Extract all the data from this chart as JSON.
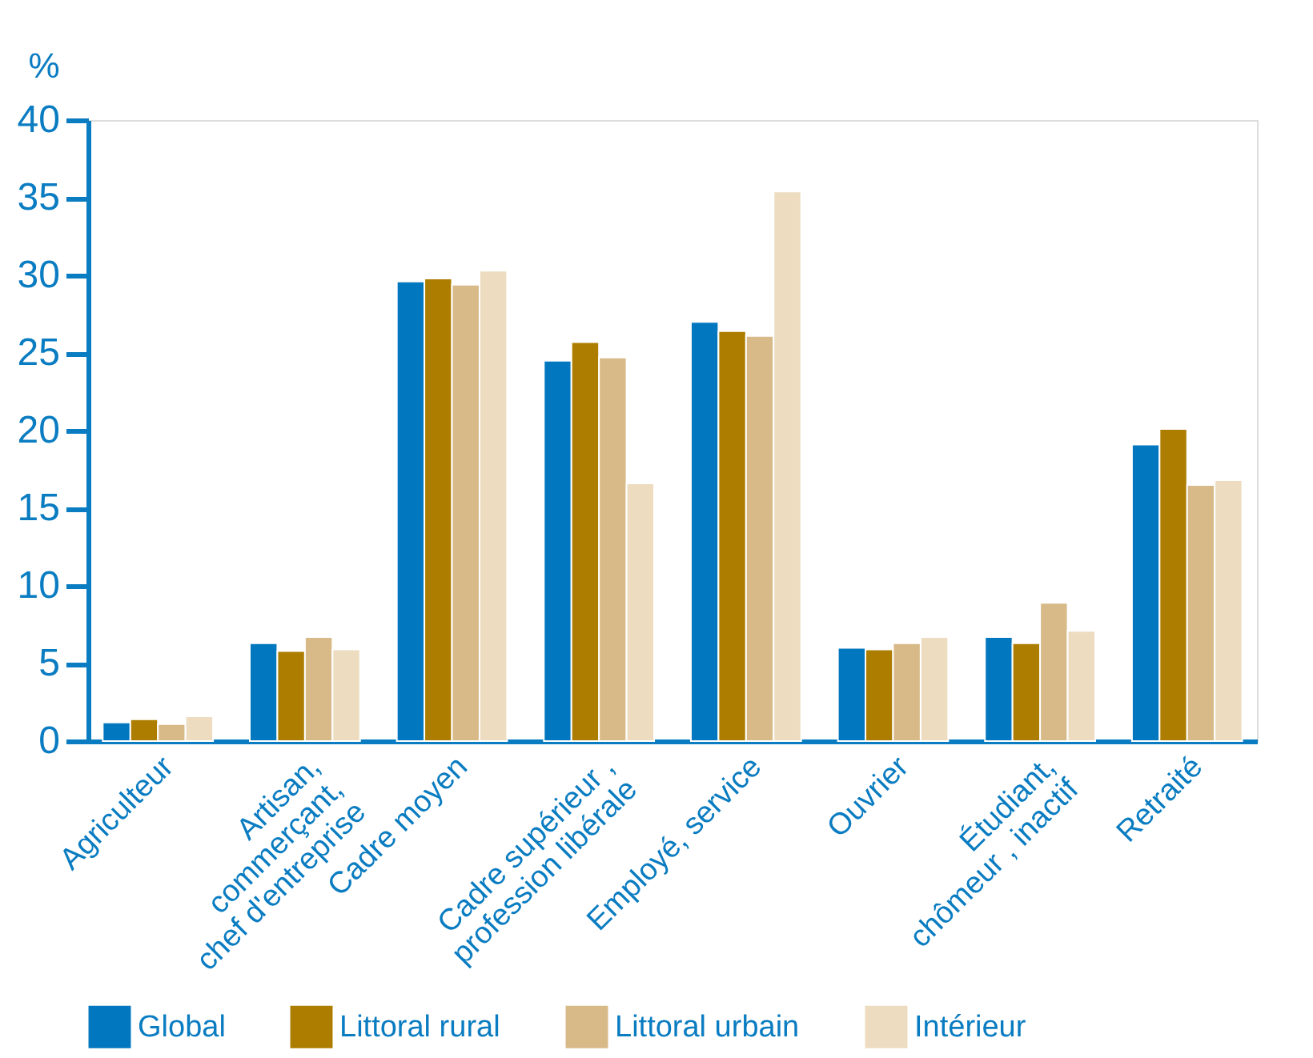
{
  "chart_data": {
    "type": "bar",
    "ylabel": "%",
    "categories": [
      "Agriculteur",
      "Artisan,\ncommerçant,\nchef d'entreprise",
      "Cadre moyen",
      "Cadre supérieur ,\nprofession libérale",
      "Employé, service",
      "Ouvrier",
      "Étudiant,\nchômeur , inactif",
      "Retraité"
    ],
    "series": [
      {
        "name": "Global",
        "color": "#0077be",
        "values": [
          1.2,
          6.3,
          29.6,
          24.5,
          27.0,
          6.0,
          6.7,
          19.1
        ]
      },
      {
        "name": "Littoral rural",
        "color": "#ad7d00",
        "values": [
          1.4,
          5.8,
          29.8,
          25.7,
          26.4,
          5.9,
          6.3,
          20.1
        ]
      },
      {
        "name": "Littoral urbain",
        "color": "#d8ba88",
        "values": [
          1.1,
          6.7,
          29.4,
          24.7,
          26.1,
          6.3,
          8.9,
          16.5
        ]
      },
      {
        "name": "Intérieur",
        "color": "#eddcc0",
        "values": [
          1.6,
          5.9,
          30.3,
          16.6,
          35.4,
          6.7,
          7.1,
          16.8
        ]
      }
    ],
    "ylim": [
      0,
      40
    ],
    "yticks": [
      0,
      5,
      10,
      15,
      20,
      25,
      30,
      35,
      40
    ],
    "grid": false,
    "legend": "bottom"
  }
}
